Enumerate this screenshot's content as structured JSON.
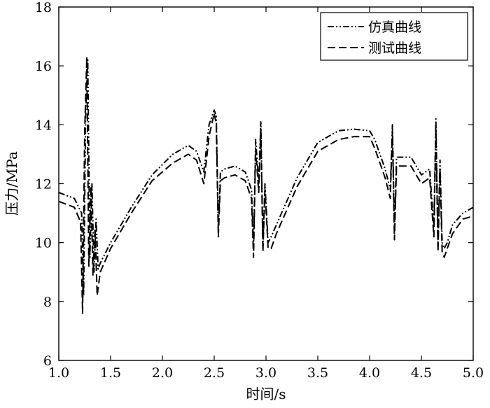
{
  "chart_data": {
    "type": "line",
    "xlabel": "时间/s",
    "ylabel": "压力/MPa",
    "xlim": [
      1.0,
      5.0
    ],
    "ylim": [
      6,
      18
    ],
    "xticks": [
      "1.0",
      "1.5",
      "2.0",
      "2.5",
      "3.0",
      "3.5",
      "4.0",
      "4.5",
      "5.0"
    ],
    "yticks": [
      "6",
      "8",
      "10",
      "12",
      "14",
      "16",
      "18"
    ],
    "grid": false,
    "legend_position": "top-right",
    "series": [
      {
        "name": "仿真曲线",
        "style": "dash-dot-dot",
        "x": [
          1.0,
          1.15,
          1.22,
          1.24,
          1.26,
          1.28,
          1.3,
          1.32,
          1.34,
          1.36,
          1.38,
          1.4,
          1.5,
          1.7,
          1.9,
          2.1,
          2.25,
          2.33,
          2.4,
          2.45,
          2.5,
          2.52,
          2.54,
          2.56,
          2.6,
          2.7,
          2.8,
          2.86,
          2.88,
          2.9,
          2.93,
          2.95,
          2.97,
          2.99,
          3.02,
          3.05,
          3.1,
          3.3,
          3.5,
          3.7,
          3.85,
          4.0,
          4.05,
          4.15,
          4.2,
          4.22,
          4.24,
          4.26,
          4.3,
          4.4,
          4.5,
          4.58,
          4.62,
          4.64,
          4.66,
          4.68,
          4.7,
          4.72,
          4.75,
          4.8,
          4.9,
          5.0
        ],
        "y": [
          11.7,
          11.5,
          11.0,
          8.2,
          14.5,
          16.2,
          9.5,
          12.0,
          9.0,
          10.8,
          9.1,
          9.3,
          10.0,
          11.2,
          12.3,
          13.0,
          13.3,
          13.1,
          12.4,
          14.0,
          14.5,
          14.3,
          10.5,
          12.4,
          12.5,
          12.6,
          12.4,
          11.8,
          9.8,
          13.5,
          12.0,
          14.1,
          9.9,
          12.0,
          10.0,
          10.2,
          10.6,
          12.2,
          13.4,
          13.8,
          13.85,
          13.8,
          13.5,
          12.5,
          11.8,
          14.0,
          10.4,
          12.9,
          12.9,
          12.9,
          12.3,
          12.5,
          10.5,
          14.2,
          10.0,
          12.8,
          10.0,
          9.8,
          10.0,
          10.6,
          11.0,
          11.2
        ]
      },
      {
        "name": "测试曲线",
        "style": "dashed",
        "x": [
          1.0,
          1.15,
          1.21,
          1.23,
          1.25,
          1.27,
          1.29,
          1.31,
          1.33,
          1.35,
          1.37,
          1.4,
          1.5,
          1.7,
          1.9,
          2.1,
          2.25,
          2.33,
          2.4,
          2.45,
          2.5,
          2.52,
          2.54,
          2.56,
          2.6,
          2.7,
          2.8,
          2.86,
          2.88,
          2.9,
          2.93,
          2.95,
          2.97,
          2.99,
          3.02,
          3.05,
          3.1,
          3.3,
          3.5,
          3.7,
          3.85,
          4.0,
          4.05,
          4.15,
          4.2,
          4.22,
          4.24,
          4.26,
          4.3,
          4.4,
          4.5,
          4.58,
          4.62,
          4.64,
          4.66,
          4.68,
          4.7,
          4.72,
          4.75,
          4.8,
          4.9,
          5.0
        ],
        "y": [
          11.4,
          11.2,
          10.7,
          7.6,
          13.8,
          16.3,
          9.2,
          11.9,
          8.9,
          10.5,
          8.2,
          9.0,
          9.8,
          11.0,
          12.1,
          12.7,
          13.0,
          12.8,
          12.0,
          13.6,
          14.4,
          14.0,
          10.2,
          12.1,
          12.2,
          12.3,
          12.1,
          11.5,
          9.5,
          13.2,
          11.7,
          13.9,
          9.7,
          11.8,
          9.8,
          9.8,
          10.3,
          11.9,
          13.1,
          13.5,
          13.6,
          13.6,
          13.2,
          12.2,
          11.5,
          13.8,
          10.1,
          12.6,
          12.6,
          12.6,
          12.0,
          12.2,
          10.2,
          13.9,
          9.7,
          12.5,
          9.7,
          9.5,
          9.8,
          10.3,
          10.8,
          10.9
        ]
      }
    ]
  }
}
